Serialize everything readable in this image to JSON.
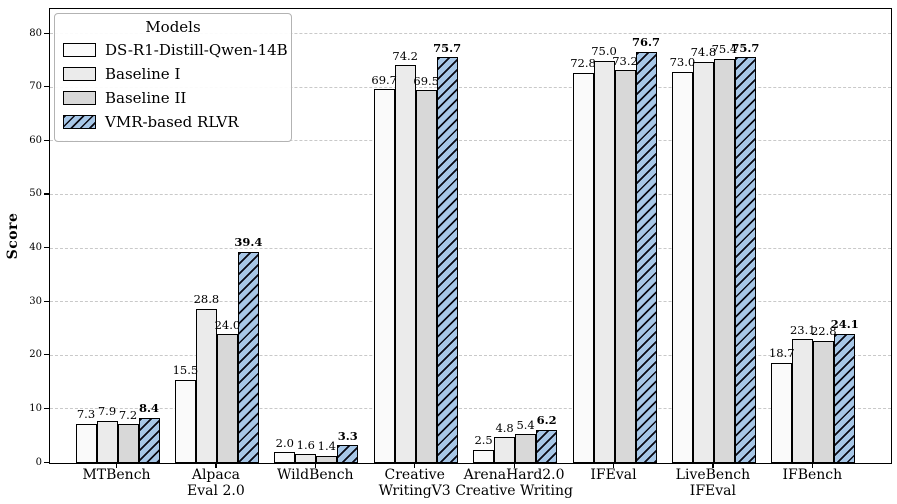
{
  "figure": {
    "ylabel": "Score",
    "legend": {
      "title": "Models",
      "position": "upper-left"
    }
  },
  "chart_data": {
    "type": "bar",
    "title": "",
    "xlabel": "",
    "ylabel": "Score",
    "ylim": [
      0,
      84.7
    ],
    "yticks": [
      0,
      10,
      20,
      30,
      40,
      50,
      60,
      70,
      80
    ],
    "grid": "horizontal-dashed",
    "legend_title": "Models",
    "legend_position": "upper-left",
    "categories": [
      {
        "lines": [
          "MTBench"
        ]
      },
      {
        "lines": [
          "Alpaca",
          "Eval 2.0"
        ]
      },
      {
        "lines": [
          "WildBench"
        ]
      },
      {
        "lines": [
          "Creative",
          "WritingV3"
        ]
      },
      {
        "lines": [
          "ArenaHard2.0",
          "Creative Writing"
        ]
      },
      {
        "lines": [
          "IFEval"
        ]
      },
      {
        "lines": [
          "LiveBench",
          "IFEval"
        ]
      },
      {
        "lines": [
          "IFBench"
        ]
      }
    ],
    "series": [
      {
        "name": "DS-R1-Distill-Qwen-14B",
        "color": "#fafafa",
        "hatch": "",
        "bold_value_labels": false,
        "values": [
          7.3,
          15.5,
          2.0,
          69.7,
          2.5,
          72.8,
          73.0,
          18.7
        ]
      },
      {
        "name": "Baseline I",
        "color": "#ebebeb",
        "hatch": "",
        "bold_value_labels": false,
        "values": [
          7.9,
          28.8,
          1.6,
          74.2,
          4.8,
          75.0,
          74.8,
          23.1
        ]
      },
      {
        "name": "Baseline II",
        "color": "#d8d8d8",
        "hatch": "",
        "bold_value_labels": false,
        "values": [
          7.2,
          24.0,
          1.4,
          69.5,
          5.4,
          73.2,
          75.4,
          22.8
        ]
      },
      {
        "name": "VMR-based RLVR",
        "color": "#a7c7e7",
        "hatch": "/",
        "bold_value_labels": true,
        "values": [
          8.4,
          39.4,
          3.3,
          75.7,
          6.2,
          76.7,
          75.7,
          24.1
        ]
      }
    ],
    "edge_color": "#000000",
    "hatch_color": "#0a0a14",
    "grid_color": "#c9c9c9"
  }
}
